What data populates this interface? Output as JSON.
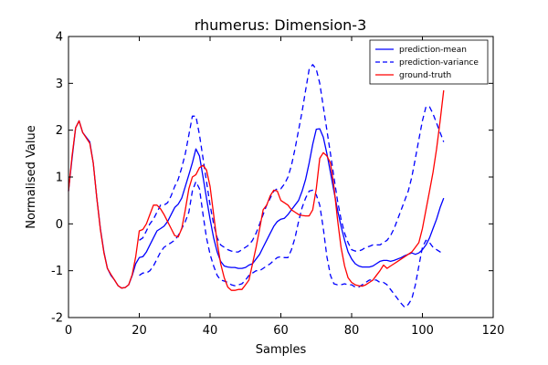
{
  "chart_data": {
    "type": "line",
    "title": "rhumerus: Dimension-3",
    "xlabel": "Samples",
    "ylabel": "Normalised Value",
    "xlim": [
      0,
      120
    ],
    "ylim": [
      -2,
      4
    ],
    "xticks": [
      0,
      20,
      40,
      60,
      80,
      100,
      120
    ],
    "yticks": [
      -2,
      -1,
      0,
      1,
      2,
      3,
      4
    ],
    "grid": false,
    "legend_position": "top-right",
    "series": [
      {
        "name": "prediction-mean",
        "color": "#0000ff",
        "style": "solid",
        "x": [
          0,
          1,
          2,
          3,
          4,
          6,
          7,
          8,
          9,
          10,
          11,
          12,
          13,
          14,
          15,
          16,
          17,
          18,
          19,
          20,
          21,
          22,
          23,
          24,
          25,
          26,
          27,
          28,
          29,
          30,
          31,
          32,
          33,
          34,
          35,
          36,
          37,
          38,
          39,
          40,
          41,
          42,
          43,
          44,
          45,
          46,
          47,
          48,
          49,
          50,
          51,
          52,
          53,
          54,
          55,
          56,
          57,
          58,
          59,
          60,
          61,
          62,
          63,
          64,
          65,
          66,
          67,
          68,
          69,
          70,
          71,
          72,
          73,
          74,
          75,
          76,
          77,
          78,
          79,
          80,
          81,
          82,
          83,
          84,
          85,
          86,
          87,
          88,
          89,
          90,
          91,
          92,
          93,
          94,
          95,
          96,
          97,
          98,
          99,
          100,
          101,
          102,
          103,
          104,
          105,
          106
        ],
        "y": [
          0.7,
          1.4,
          2.05,
          2.2,
          1.95,
          1.75,
          1.3,
          0.55,
          -0.1,
          -0.6,
          -0.95,
          -1.1,
          -1.2,
          -1.32,
          -1.37,
          -1.36,
          -1.3,
          -1.1,
          -0.85,
          -0.72,
          -0.7,
          -0.6,
          -0.45,
          -0.3,
          -0.15,
          -0.1,
          -0.05,
          0.05,
          0.2,
          0.35,
          0.42,
          0.55,
          0.8,
          1.05,
          1.3,
          1.6,
          1.45,
          1.0,
          0.55,
          0.1,
          -0.3,
          -0.6,
          -0.8,
          -0.9,
          -0.92,
          -0.93,
          -0.93,
          -0.95,
          -0.95,
          -0.93,
          -0.88,
          -0.85,
          -0.75,
          -0.65,
          -0.5,
          -0.35,
          -0.2,
          -0.05,
          0.05,
          0.1,
          0.12,
          0.2,
          0.3,
          0.4,
          0.5,
          0.7,
          0.95,
          1.3,
          1.7,
          2.02,
          2.03,
          1.85,
          1.5,
          1.1,
          0.7,
          0.3,
          -0.05,
          -0.35,
          -0.6,
          -0.75,
          -0.85,
          -0.9,
          -0.92,
          -0.92,
          -0.92,
          -0.9,
          -0.85,
          -0.8,
          -0.78,
          -0.78,
          -0.8,
          -0.78,
          -0.75,
          -0.72,
          -0.68,
          -0.65,
          -0.62,
          -0.65,
          -0.62,
          -0.55,
          -0.45,
          -0.3,
          -0.1,
          0.1,
          0.35,
          0.55
        ]
      },
      {
        "name": "prediction-variance",
        "color": "#0000ff",
        "style": "dashed",
        "x": [
          20,
          21,
          22,
          23,
          24,
          25,
          26,
          27,
          28,
          29,
          30,
          31,
          32,
          33,
          34,
          35,
          36,
          37,
          38,
          39,
          40,
          41,
          42,
          43,
          44,
          45,
          46,
          47,
          48,
          49,
          50,
          51,
          52,
          53,
          54,
          55,
          56,
          57,
          58,
          59,
          60,
          61,
          62,
          63,
          64,
          65,
          66,
          67,
          68,
          69,
          70,
          71,
          72,
          73,
          74,
          75,
          76,
          77,
          78,
          79,
          80,
          81,
          82,
          83,
          84,
          85,
          86,
          87,
          88,
          89,
          90,
          91,
          92,
          93,
          94,
          95,
          96,
          97,
          98,
          99,
          100,
          101,
          102,
          103,
          104,
          105,
          106
        ],
        "y": [
          -0.35,
          -0.3,
          -0.15,
          0.0,
          0.1,
          0.25,
          0.4,
          0.4,
          0.45,
          0.6,
          0.8,
          0.95,
          1.2,
          1.5,
          1.9,
          2.3,
          2.3,
          1.9,
          1.4,
          0.9,
          0.4,
          0.0,
          -0.3,
          -0.45,
          -0.5,
          -0.55,
          -0.58,
          -0.6,
          -0.6,
          -0.55,
          -0.5,
          -0.45,
          -0.35,
          -0.2,
          0.0,
          0.2,
          0.4,
          0.55,
          0.7,
          0.75,
          0.75,
          0.85,
          1.0,
          1.25,
          1.6,
          2.0,
          2.4,
          2.85,
          3.3,
          3.4,
          3.3,
          3.0,
          2.5,
          2.0,
          1.5,
          1.0,
          0.5,
          0.1,
          -0.2,
          -0.4,
          -0.55,
          -0.58,
          -0.58,
          -0.55,
          -0.5,
          -0.48,
          -0.45,
          -0.45,
          -0.45,
          -0.4,
          -0.35,
          -0.25,
          -0.1,
          0.1,
          0.3,
          0.5,
          0.7,
          1.0,
          1.4,
          1.8,
          2.2,
          2.5,
          2.5,
          2.35,
          2.15,
          1.95,
          1.75
        ]
      },
      {
        "name": "prediction-variance-lower",
        "color": "#0000ff",
        "style": "dashed",
        "x": [
          20,
          21,
          22,
          23,
          24,
          25,
          26,
          27,
          28,
          29,
          30,
          31,
          32,
          33,
          34,
          35,
          36,
          37,
          38,
          39,
          40,
          41,
          42,
          43,
          44,
          45,
          46,
          47,
          48,
          49,
          50,
          51,
          52,
          53,
          54,
          55,
          56,
          57,
          58,
          59,
          60,
          61,
          62,
          63,
          64,
          65,
          66,
          67,
          68,
          69,
          70,
          71,
          72,
          73,
          74,
          75,
          76,
          77,
          78,
          79,
          80,
          81,
          82,
          83,
          84,
          85,
          86,
          87,
          88,
          89,
          90,
          91,
          92,
          93,
          94,
          95,
          96,
          97,
          98,
          99,
          100,
          101,
          102,
          103,
          104,
          105,
          106
        ],
        "y": [
          -1.1,
          -1.05,
          -1.05,
          -1.0,
          -0.9,
          -0.75,
          -0.6,
          -0.5,
          -0.45,
          -0.4,
          -0.35,
          -0.25,
          -0.1,
          0.05,
          0.25,
          0.7,
          0.9,
          0.75,
          0.2,
          -0.3,
          -0.65,
          -0.9,
          -1.1,
          -1.2,
          -1.22,
          -1.25,
          -1.3,
          -1.32,
          -1.3,
          -1.28,
          -1.2,
          -1.1,
          -1.05,
          -1.0,
          -1.0,
          -0.95,
          -0.9,
          -0.85,
          -0.78,
          -0.72,
          -0.7,
          -0.72,
          -0.72,
          -0.55,
          -0.3,
          0.05,
          0.35,
          0.55,
          0.7,
          0.72,
          0.62,
          0.4,
          -0.1,
          -0.7,
          -1.1,
          -1.28,
          -1.3,
          -1.3,
          -1.28,
          -1.3,
          -1.3,
          -1.35,
          -1.35,
          -1.3,
          -1.25,
          -1.2,
          -1.2,
          -1.2,
          -1.25,
          -1.25,
          -1.3,
          -1.4,
          -1.5,
          -1.6,
          -1.7,
          -1.78,
          -1.72,
          -1.6,
          -1.3,
          -0.9,
          -0.5,
          -0.35,
          -0.4,
          -0.5,
          -0.55,
          -0.6,
          -0.62
        ]
      },
      {
        "name": "ground-truth",
        "color": "#ff0000",
        "style": "solid",
        "x": [
          0,
          1,
          2,
          3,
          4,
          6,
          7,
          8,
          9,
          10,
          11,
          12,
          13,
          14,
          15,
          16,
          17,
          18,
          19,
          20,
          21,
          22,
          23,
          24,
          25,
          26,
          27,
          28,
          29,
          30,
          31,
          32,
          33,
          34,
          35,
          36,
          37,
          38,
          39,
          40,
          41,
          42,
          43,
          44,
          45,
          46,
          47,
          48,
          49,
          50,
          51,
          52,
          53,
          54,
          55,
          56,
          57,
          58,
          59,
          60,
          61,
          62,
          63,
          64,
          65,
          66,
          67,
          68,
          69,
          70,
          71,
          72,
          73,
          74,
          75,
          76,
          77,
          78,
          79,
          80,
          81,
          82,
          83,
          84,
          85,
          86,
          87,
          88,
          89,
          90,
          91,
          92,
          93,
          94,
          95,
          96,
          97,
          98,
          99,
          100,
          101,
          102,
          103,
          104,
          105,
          106
        ],
        "y": [
          0.7,
          1.45,
          2.05,
          2.2,
          1.95,
          1.72,
          1.3,
          0.55,
          -0.12,
          -0.62,
          -0.95,
          -1.08,
          -1.2,
          -1.32,
          -1.37,
          -1.36,
          -1.3,
          -1.08,
          -0.7,
          -0.15,
          -0.12,
          0.0,
          0.2,
          0.4,
          0.4,
          0.32,
          0.2,
          0.05,
          -0.1,
          -0.25,
          -0.28,
          -0.1,
          0.3,
          0.75,
          1.0,
          1.05,
          1.2,
          1.25,
          1.15,
          0.8,
          0.2,
          -0.4,
          -0.85,
          -1.15,
          -1.35,
          -1.42,
          -1.42,
          -1.4,
          -1.4,
          -1.3,
          -1.2,
          -0.85,
          -0.5,
          -0.1,
          0.3,
          0.4,
          0.6,
          0.72,
          0.7,
          0.5,
          0.45,
          0.4,
          0.3,
          0.25,
          0.2,
          0.18,
          0.17,
          0.17,
          0.3,
          0.75,
          1.4,
          1.52,
          1.45,
          1.3,
          0.8,
          0.1,
          -0.5,
          -0.9,
          -1.15,
          -1.25,
          -1.3,
          -1.32,
          -1.33,
          -1.3,
          -1.25,
          -1.2,
          -1.1,
          -1.0,
          -0.88,
          -0.95,
          -0.9,
          -0.85,
          -0.8,
          -0.75,
          -0.7,
          -0.65,
          -0.6,
          -0.5,
          -0.4,
          -0.1,
          0.3,
          0.7,
          1.1,
          1.6,
          2.2,
          2.85
        ]
      }
    ],
    "legend": [
      {
        "label": "prediction-mean",
        "color": "#0000ff",
        "style": "solid"
      },
      {
        "label": "prediction-variance",
        "color": "#0000ff",
        "style": "dashed"
      },
      {
        "label": "ground-truth",
        "color": "#ff0000",
        "style": "solid"
      }
    ]
  }
}
